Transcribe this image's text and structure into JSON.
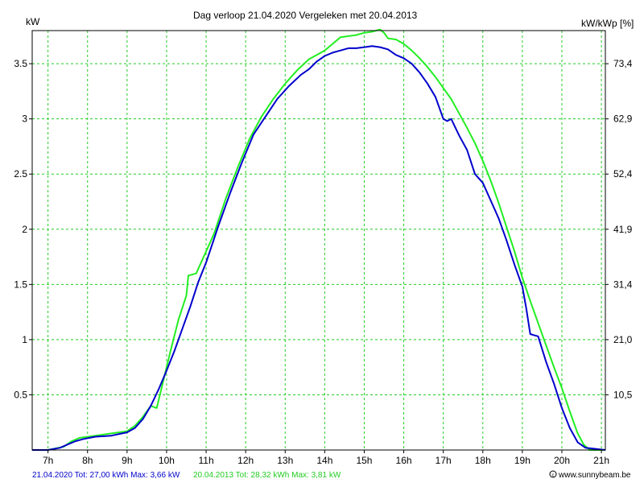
{
  "chart_data": {
    "type": "line",
    "title": "Dag  verloop 21.04.2020   Vergeleken met 20.04.2013",
    "ylabel_left": "kW",
    "ylabel_right": "kW/kWp [%]",
    "xlim": [
      6.6,
      21.1
    ],
    "ylim": [
      0,
      3.8
    ],
    "x_ticks": [
      7,
      8,
      9,
      10,
      11,
      12,
      13,
      14,
      15,
      16,
      17,
      18,
      19,
      20,
      21
    ],
    "x_tick_labels": [
      "7h",
      "8h",
      "9h",
      "10h",
      "11h",
      "12h",
      "13h",
      "14h",
      "15h",
      "16h",
      "17h",
      "18h",
      "19h",
      "20h",
      "21h"
    ],
    "y_ticks": [
      0.5,
      1,
      1.5,
      2,
      2.5,
      3,
      3.5
    ],
    "y_tick_labels": [
      "0.5",
      "1",
      "1.5",
      "2",
      "2.5",
      "3",
      "3.5"
    ],
    "y2_tick_labels": [
      "10,5",
      "21,0",
      "31,4",
      "41,9",
      "52,4",
      "62,9",
      "73,4"
    ],
    "grid": true,
    "colors": {
      "grid": "#22cc22",
      "series_2020": "#0000cc",
      "series_2013": "#22ee22"
    },
    "series": [
      {
        "name": "21.04.2020",
        "color": "#0000cc",
        "x": [
          6.6,
          7.0,
          7.3,
          7.5,
          7.7,
          7.9,
          8.2,
          8.6,
          9.0,
          9.2,
          9.4,
          9.6,
          9.8,
          10.0,
          10.2,
          10.4,
          10.6,
          10.8,
          11.0,
          11.3,
          11.6,
          11.9,
          12.2,
          12.5,
          12.8,
          13.1,
          13.4,
          13.6,
          13.8,
          14.0,
          14.2,
          14.4,
          14.6,
          14.8,
          15.0,
          15.2,
          15.4,
          15.6,
          15.8,
          16.0,
          16.2,
          16.4,
          16.6,
          16.8,
          17.0,
          17.1,
          17.2,
          17.4,
          17.6,
          17.8,
          18.0,
          18.2,
          18.4,
          18.6,
          18.8,
          18.9,
          19.0,
          19.1,
          19.2,
          19.3,
          19.4,
          19.6,
          19.8,
          20.0,
          20.2,
          20.4,
          20.6,
          21.1
        ],
        "values": [
          0,
          0,
          0.02,
          0.05,
          0.08,
          0.1,
          0.12,
          0.13,
          0.16,
          0.2,
          0.28,
          0.4,
          0.55,
          0.72,
          0.9,
          1.1,
          1.3,
          1.52,
          1.7,
          2.02,
          2.32,
          2.6,
          2.86,
          3.02,
          3.18,
          3.3,
          3.4,
          3.45,
          3.52,
          3.57,
          3.6,
          3.62,
          3.64,
          3.64,
          3.65,
          3.66,
          3.65,
          3.63,
          3.58,
          3.55,
          3.5,
          3.42,
          3.32,
          3.2,
          3.0,
          2.98,
          3.0,
          2.85,
          2.72,
          2.5,
          2.42,
          2.26,
          2.1,
          1.9,
          1.68,
          1.58,
          1.48,
          1.28,
          1.05,
          1.04,
          1.03,
          0.8,
          0.6,
          0.38,
          0.2,
          0.07,
          0.02,
          0
        ]
      },
      {
        "name": "20.04.2013",
        "color": "#22ee22",
        "x": [
          6.6,
          7.0,
          7.4,
          7.6,
          7.8,
          8.2,
          8.6,
          9.0,
          9.2,
          9.4,
          9.6,
          9.75,
          9.9,
          10.1,
          10.3,
          10.5,
          10.55,
          10.75,
          10.9,
          11.2,
          11.5,
          11.8,
          12.1,
          12.4,
          12.7,
          13.0,
          13.3,
          13.6,
          13.8,
          14.0,
          14.2,
          14.4,
          14.6,
          14.8,
          15.0,
          15.2,
          15.4,
          15.5,
          15.6,
          15.8,
          16.0,
          16.2,
          16.4,
          16.6,
          16.8,
          17.0,
          17.2,
          17.4,
          17.6,
          17.8,
          18.0,
          18.2,
          18.4,
          18.6,
          18.8,
          19.0,
          19.2,
          19.4,
          19.6,
          19.8,
          20.0,
          20.2,
          20.4,
          20.55,
          20.7,
          21.1
        ],
        "values": [
          0,
          0,
          0.03,
          0.08,
          0.11,
          0.13,
          0.15,
          0.17,
          0.22,
          0.3,
          0.4,
          0.38,
          0.6,
          0.9,
          1.18,
          1.4,
          1.58,
          1.6,
          1.72,
          1.96,
          2.28,
          2.56,
          2.82,
          3.02,
          3.18,
          3.32,
          3.44,
          3.54,
          3.58,
          3.62,
          3.68,
          3.74,
          3.75,
          3.76,
          3.78,
          3.79,
          3.81,
          3.78,
          3.73,
          3.72,
          3.68,
          3.62,
          3.55,
          3.47,
          3.38,
          3.28,
          3.18,
          3.05,
          2.92,
          2.78,
          2.62,
          2.44,
          2.24,
          2.02,
          1.8,
          1.56,
          1.35,
          1.15,
          0.95,
          0.75,
          0.56,
          0.35,
          0.15,
          0.05,
          0,
          0
        ]
      }
    ],
    "legend": {
      "series_2020_text": "21.04.2020 Tot: 27,00 kWh Max: 3,66 kW",
      "series_2013_text": "20.04.2013 Tot: 28,32 kWh Max: 3,81 kW"
    },
    "credit": "www.sunnybeam.be"
  }
}
